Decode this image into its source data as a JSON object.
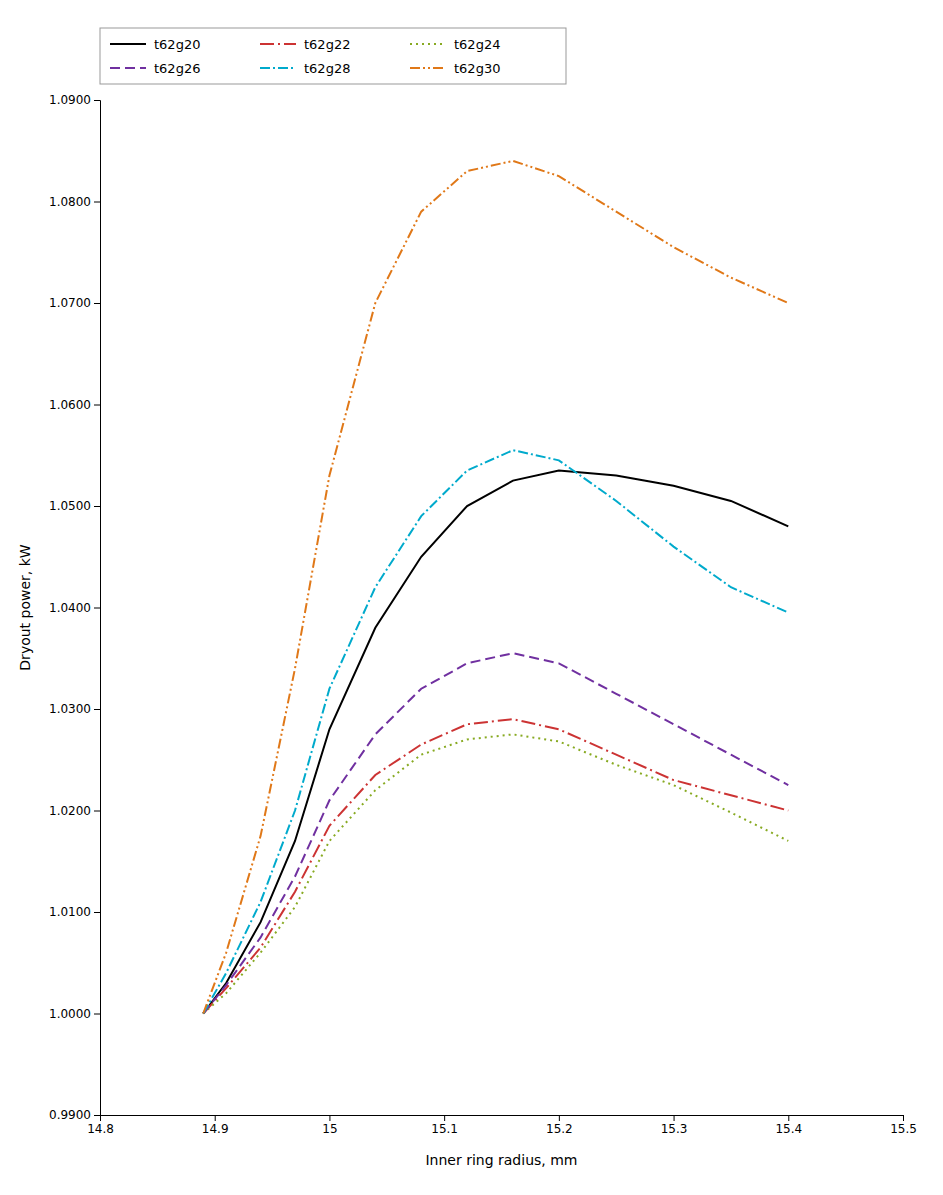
{
  "chart_data": {
    "type": "line",
    "xlabel": "Inner ring radius, mm",
    "ylabel": "Dryout power, kW",
    "xlim": [
      14.8,
      15.5
    ],
    "ylim": [
      0.99,
      1.09
    ],
    "xticks": [
      14.8,
      14.9,
      15,
      15.1,
      15.2,
      15.3,
      15.4,
      15.5
    ],
    "yticks": [
      {
        "value": 0.99,
        "label": "0.9900"
      },
      {
        "value": 1.0,
        "label": "1.0000"
      },
      {
        "value": 1.01,
        "label": "1.0100"
      },
      {
        "value": 1.02,
        "label": "1.0200"
      },
      {
        "value": 1.03,
        "label": "1.0300"
      },
      {
        "value": 1.04,
        "label": "1.0400"
      },
      {
        "value": 1.05,
        "label": "1.0500"
      },
      {
        "value": 1.06,
        "label": "1.0600"
      },
      {
        "value": 1.07,
        "label": "1.0700"
      },
      {
        "value": 1.08,
        "label": "1.0800"
      },
      {
        "value": 1.09,
        "label": "1.0900"
      }
    ],
    "grid": false,
    "legend": "upper left",
    "x": [
      14.89,
      14.91,
      14.94,
      14.97,
      15.0,
      15.04,
      15.08,
      15.12,
      15.16,
      15.2,
      15.25,
      15.3,
      15.35,
      15.4
    ],
    "series": [
      {
        "name": "t62g20",
        "color": "#000000",
        "line_style": "solid",
        "values": [
          1.0,
          1.003,
          1.009,
          1.017,
          1.028,
          1.038,
          1.045,
          1.05,
          1.0525,
          1.0535,
          1.053,
          1.052,
          1.0505,
          1.048
        ]
      },
      {
        "name": "t62g22",
        "color": "#cc3333",
        "line_style": "dashdot_long",
        "values": [
          1.0,
          1.0025,
          1.0065,
          1.012,
          1.0185,
          1.0235,
          1.0265,
          1.0285,
          1.029,
          1.028,
          1.0255,
          1.023,
          1.0215,
          1.02
        ]
      },
      {
        "name": "t62g24",
        "color": "#88aa22",
        "line_style": "dotted",
        "values": [
          1.0,
          1.002,
          1.006,
          1.0105,
          1.017,
          1.022,
          1.0255,
          1.027,
          1.0275,
          1.0268,
          1.0245,
          1.0225,
          1.0198,
          1.017
        ]
      },
      {
        "name": "t62g26",
        "color": "#7030a0",
        "line_style": "dashed",
        "values": [
          1.0,
          1.0028,
          1.0075,
          1.0135,
          1.021,
          1.0275,
          1.032,
          1.0345,
          1.0355,
          1.0345,
          1.0315,
          1.0285,
          1.0255,
          1.0225
        ]
      },
      {
        "name": "t62g28",
        "color": "#00aacc",
        "line_style": "dashdot",
        "values": [
          1.0,
          1.004,
          1.011,
          1.02,
          1.032,
          1.042,
          1.049,
          1.0535,
          1.0555,
          1.0545,
          1.0505,
          1.046,
          1.042,
          1.0395
        ]
      },
      {
        "name": "t62g30",
        "color": "#e07818",
        "line_style": "dotdashdash",
        "values": [
          1.0,
          1.006,
          1.0175,
          1.034,
          1.053,
          1.07,
          1.079,
          1.083,
          1.084,
          1.0825,
          1.079,
          1.0755,
          1.0725,
          1.07
        ]
      }
    ]
  }
}
